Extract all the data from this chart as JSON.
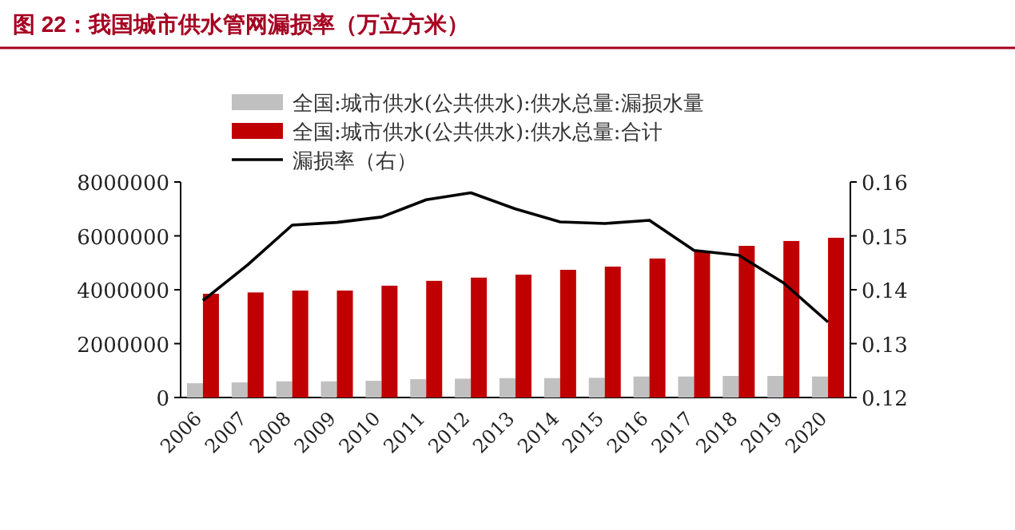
{
  "chart_data": {
    "type": "bar",
    "title": "图 22：我国城市供水管网漏损率（万立方米）",
    "categories": [
      "2006",
      "2007",
      "2008",
      "2009",
      "2010",
      "2011",
      "2012",
      "2013",
      "2014",
      "2015",
      "2016",
      "2017",
      "2018",
      "2019",
      "2020"
    ],
    "series": [
      {
        "name": "全国:城市供水(公共供水):供水总量:漏损水量",
        "color": "#c0c0c0",
        "values": [
          530000,
          560000,
          600000,
          600000,
          620000,
          680000,
          700000,
          720000,
          720000,
          730000,
          780000,
          780000,
          800000,
          800000,
          780000
        ]
      },
      {
        "name": "全国:城市供水(公共供水):供水总量:合计",
        "color": "#c00000",
        "values": [
          3850000,
          3900000,
          3970000,
          3970000,
          4150000,
          4330000,
          4450000,
          4560000,
          4740000,
          4860000,
          5160000,
          5450000,
          5630000,
          5810000,
          5930000
        ]
      },
      {
        "name": "漏损率（右）",
        "type": "line",
        "axis": "y2",
        "color": "#000000",
        "values": [
          0.138,
          0.1446,
          0.152,
          0.1525,
          0.1535,
          0.1567,
          0.158,
          0.155,
          0.1526,
          0.1523,
          0.1529,
          0.1473,
          0.1464,
          0.1413,
          0.134
        ]
      }
    ],
    "ylim": [
      0,
      8000000
    ],
    "yticks": [
      0,
      2000000,
      4000000,
      6000000,
      8000000
    ],
    "y2lim": [
      0.12,
      0.16
    ],
    "y2ticks": [
      0.12,
      0.13,
      0.14,
      0.15,
      0.16
    ],
    "legend": "top left"
  }
}
